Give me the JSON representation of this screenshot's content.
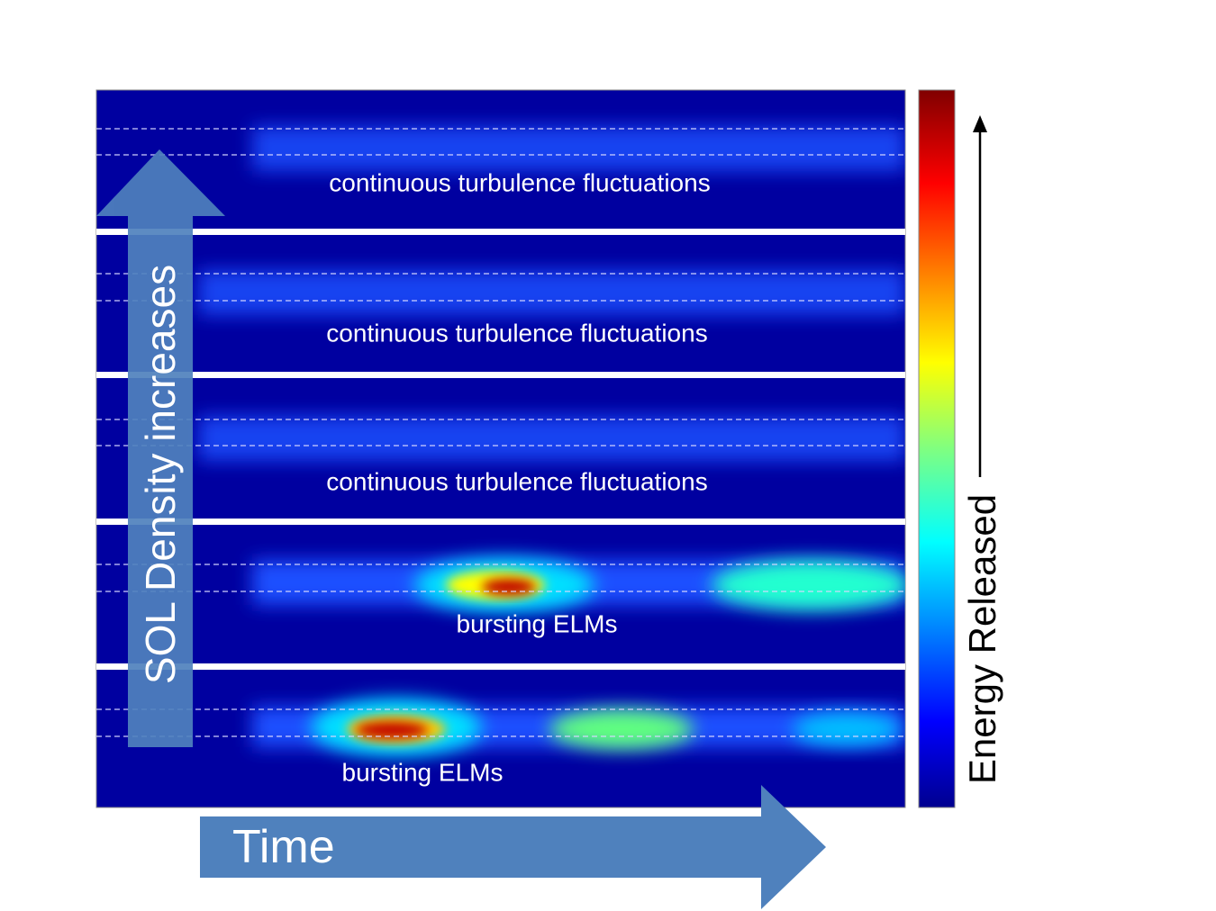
{
  "panels": [
    {
      "label": "continuous turbulence fluctuations"
    },
    {
      "label": "continuous turbulence fluctuations"
    },
    {
      "label": "continuous turbulence fluctuations"
    },
    {
      "label": "bursting ELMs"
    },
    {
      "label": "bursting ELMs"
    }
  ],
  "y_axis_label": "SOL Density increases",
  "x_axis_label": "Time",
  "colorbar_label": "Energy Released"
}
